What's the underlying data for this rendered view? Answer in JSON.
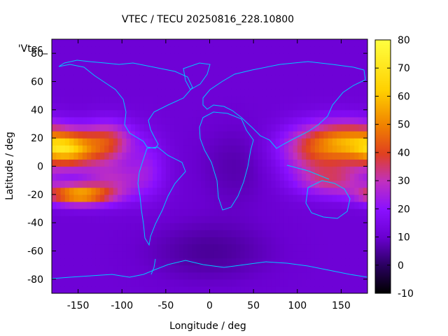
{
  "chart_data": {
    "type": "heatmap",
    "title": "VTEC / TECU 20250816_228.10800",
    "xlabel": "Longitude / deg",
    "ylabel": "Latitude / deg",
    "legend_label": "'Vtec_",
    "xlim": [
      -180,
      180
    ],
    "ylim": [
      -90,
      90
    ],
    "xticks": [
      -150,
      -100,
      -50,
      0,
      50,
      100,
      150
    ],
    "yticks": [
      -80,
      -60,
      -40,
      -20,
      0,
      20,
      40,
      60,
      80
    ],
    "colorbar": {
      "range": [
        -10,
        80
      ],
      "ticks": [
        -10,
        0,
        10,
        20,
        30,
        40,
        50,
        60,
        70,
        80
      ]
    },
    "colormap": [
      "#000000",
      "#2a0060",
      "#6a00d0",
      "#8a10ff",
      "#c030c0",
      "#e04020",
      "#f08000",
      "#ffd000",
      "#ffff40"
    ],
    "coastline_color": "#00c8ff",
    "grid_step_deg": 5,
    "background_level": 14,
    "features": [
      {
        "lon": -160,
        "lat": 12,
        "sigma_lon": 24,
        "sigma_lat": 9,
        "amp": 44
      },
      {
        "lon": -150,
        "lat": -20,
        "sigma_lon": 26,
        "sigma_lat": 5,
        "amp": 48
      },
      {
        "lon": -115,
        "lat": 18,
        "sigma_lon": 20,
        "sigma_lat": 10,
        "amp": 28
      },
      {
        "lon": -110,
        "lat": -10,
        "sigma_lon": 25,
        "sigma_lat": 10,
        "amp": 18
      },
      {
        "lon": -70,
        "lat": 0,
        "sigma_lon": 15,
        "sigma_lat": 15,
        "amp": 10
      },
      {
        "lon": 160,
        "lat": 18,
        "sigma_lon": 30,
        "sigma_lat": 10,
        "amp": 34
      },
      {
        "lon": 120,
        "lat": 12,
        "sigma_lon": 30,
        "sigma_lat": 12,
        "amp": 26
      },
      {
        "lon": 140,
        "lat": -10,
        "sigma_lon": 30,
        "sigma_lat": 8,
        "amp": 22
      },
      {
        "lon": 30,
        "lat": 0,
        "sigma_lon": 30,
        "sigma_lat": 20,
        "amp": -5
      },
      {
        "lon": 0,
        "lat": -60,
        "sigma_lon": 50,
        "sigma_lat": 15,
        "amp": -7
      }
    ]
  }
}
